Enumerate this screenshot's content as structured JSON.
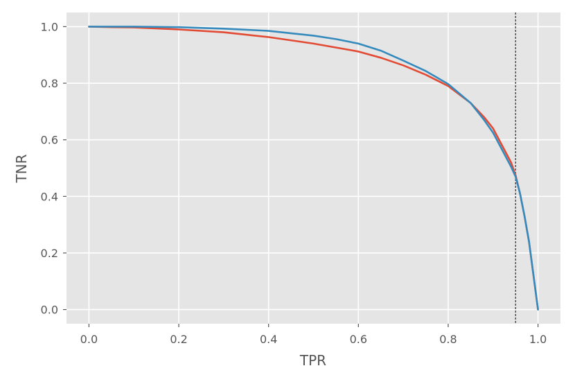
{
  "chart_data": {
    "type": "line",
    "title": "",
    "xlabel": "TPR",
    "ylabel": "TNR",
    "xlim": [
      -0.05,
      1.05
    ],
    "ylim": [
      -0.05,
      1.05
    ],
    "xticks": [
      "0.0",
      "0.2",
      "0.4",
      "0.6",
      "0.8",
      "1.0"
    ],
    "yticks": [
      "0.0",
      "0.2",
      "0.4",
      "0.6",
      "0.8",
      "1.0"
    ],
    "grid": true,
    "background": "#E5E5E5",
    "grid_color": "#FFFFFF",
    "reference_line": {
      "axis": "x",
      "value": 0.95,
      "style": "dashed",
      "color": "#000000"
    },
    "series": [
      {
        "color": "#E24A33",
        "x": [
          0.0,
          0.05,
          0.1,
          0.2,
          0.3,
          0.4,
          0.5,
          0.6,
          0.65,
          0.7,
          0.75,
          0.8,
          0.85,
          0.88,
          0.9,
          0.92,
          0.94,
          0.95,
          0.96,
          0.97,
          0.98,
          0.99,
          0.995,
          1.0
        ],
        "y": [
          1.0,
          0.998,
          0.997,
          0.99,
          0.98,
          0.963,
          0.94,
          0.912,
          0.89,
          0.863,
          0.83,
          0.79,
          0.73,
          0.68,
          0.64,
          0.58,
          0.52,
          0.475,
          0.41,
          0.33,
          0.24,
          0.12,
          0.06,
          0.0
        ]
      },
      {
        "color": "#348ABD",
        "x": [
          0.0,
          0.05,
          0.1,
          0.2,
          0.3,
          0.4,
          0.5,
          0.55,
          0.6,
          0.65,
          0.7,
          0.75,
          0.8,
          0.85,
          0.88,
          0.9,
          0.92,
          0.94,
          0.95,
          0.96,
          0.97,
          0.98,
          0.99,
          0.995,
          1.0
        ],
        "y": [
          1.0,
          1.0,
          1.0,
          0.998,
          0.993,
          0.985,
          0.968,
          0.956,
          0.94,
          0.915,
          0.88,
          0.843,
          0.797,
          0.73,
          0.67,
          0.625,
          0.565,
          0.505,
          0.47,
          0.41,
          0.33,
          0.24,
          0.12,
          0.06,
          0.0
        ]
      }
    ]
  }
}
